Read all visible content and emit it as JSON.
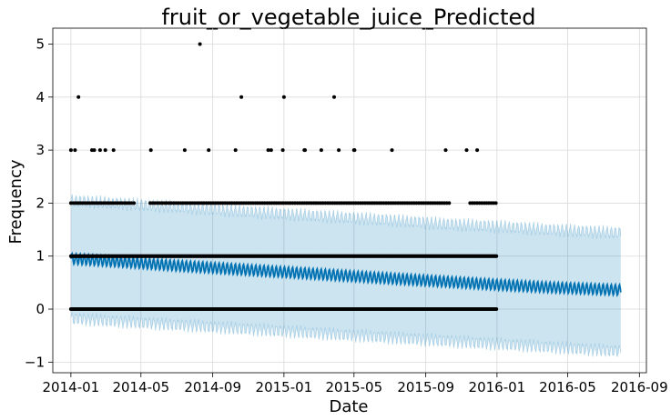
{
  "chart_data": {
    "type": "scatter",
    "title": "fruit_or_vegetable_juice_Predicted",
    "xlabel": "Date",
    "ylabel": "Frequency",
    "x_range": [
      "2013-12-01",
      "2016-09-13"
    ],
    "ylim": [
      -1.2,
      5.3
    ],
    "x_ticks": [
      "2014-01",
      "2014-05",
      "2014-09",
      "2015-01",
      "2015-05",
      "2015-09",
      "2016-01",
      "2016-05",
      "2016-09"
    ],
    "y_ticks": [
      -1,
      0,
      1,
      2,
      3,
      4,
      5
    ],
    "grid": true,
    "colors": {
      "observed": "#000000",
      "forecast_line": "#0072B2",
      "uncertainty_fill": "#0072B2",
      "grid": "#d9d9d9"
    },
    "forecast": {
      "x": [
        "2014-01-01",
        "2014-04-01",
        "2014-07-01",
        "2014-10-01",
        "2015-01-01",
        "2015-04-01",
        "2015-07-01",
        "2015-10-01",
        "2016-01-01",
        "2016-04-01",
        "2016-07-31"
      ],
      "yhat": [
        0.95,
        0.89,
        0.82,
        0.76,
        0.7,
        0.64,
        0.58,
        0.52,
        0.46,
        0.41,
        0.36
      ],
      "yhat_lower": [
        -0.18,
        -0.24,
        -0.3,
        -0.36,
        -0.42,
        -0.48,
        -0.54,
        -0.6,
        -0.66,
        -0.72,
        -0.8
      ],
      "yhat_upper": [
        2.05,
        1.99,
        1.93,
        1.86,
        1.8,
        1.74,
        1.68,
        1.61,
        1.56,
        1.5,
        1.44
      ],
      "weekly_amplitude": 0.1
    },
    "observed": [
      {
        "x": "2014-01-01",
        "y": 3
      },
      {
        "x": "2014-01-08",
        "y": 3
      },
      {
        "x": "2014-01-14",
        "y": 4
      },
      {
        "x": "2014-02-06",
        "y": 3
      },
      {
        "x": "2014-02-10",
        "y": 3
      },
      {
        "x": "2014-02-20",
        "y": 3
      },
      {
        "x": "2014-03-01",
        "y": 3
      },
      {
        "x": "2014-03-15",
        "y": 3
      },
      {
        "x": "2014-05-18",
        "y": 3
      },
      {
        "x": "2014-07-15",
        "y": 3
      },
      {
        "x": "2014-08-10",
        "y": 5
      },
      {
        "x": "2014-08-25",
        "y": 3
      },
      {
        "x": "2014-10-10",
        "y": 3
      },
      {
        "x": "2014-10-20",
        "y": 4
      },
      {
        "x": "2014-12-05",
        "y": 3
      },
      {
        "x": "2014-12-10",
        "y": 3
      },
      {
        "x": "2014-12-30",
        "y": 3
      },
      {
        "x": "2015-01-01",
        "y": 4
      },
      {
        "x": "2015-02-05",
        "y": 3
      },
      {
        "x": "2015-02-06",
        "y": 3
      },
      {
        "x": "2015-03-06",
        "y": 3
      },
      {
        "x": "2015-03-28",
        "y": 4
      },
      {
        "x": "2015-04-05",
        "y": 3
      },
      {
        "x": "2015-05-01",
        "y": 3
      },
      {
        "x": "2015-05-02",
        "y": 3
      },
      {
        "x": "2015-07-05",
        "y": 3
      },
      {
        "x": "2015-10-05",
        "y": 3
      },
      {
        "x": "2015-11-10",
        "y": 3
      },
      {
        "x": "2015-11-28",
        "y": 3
      }
    ],
    "observed_bands": [
      {
        "y": 2,
        "start": "2014-01-01",
        "end": "2016-01-01",
        "spacing_days": 4,
        "gaps": [
          [
            "2014-04-20",
            "2014-05-15"
          ],
          [
            "2015-10-15",
            "2015-11-12"
          ]
        ]
      },
      {
        "y": 1,
        "start": "2014-01-01",
        "end": "2016-01-01",
        "spacing_days": 1.5,
        "gaps": []
      },
      {
        "y": 0,
        "start": "2014-01-01",
        "end": "2016-01-01",
        "spacing_days": 1.5,
        "gaps": []
      }
    ]
  }
}
